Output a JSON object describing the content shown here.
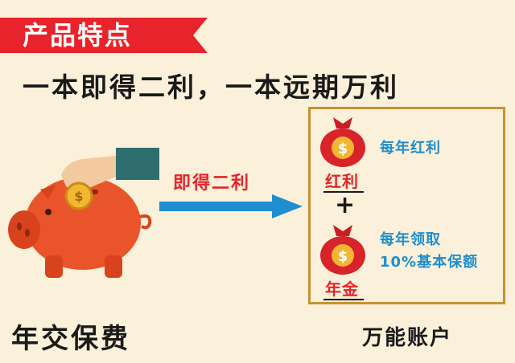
{
  "banner": {
    "title": "产品特点",
    "color": "#e8232b"
  },
  "headline": "一本即得二利，一本远期万利",
  "arrow": {
    "label": "即得二利",
    "color": "#1f8ed0"
  },
  "left_caption": "年交保费",
  "account": {
    "caption": "万能账户",
    "border_color": "#c79232",
    "items": [
      {
        "bag_label": "红利",
        "description_lines": [
          "每年红利"
        ]
      },
      {
        "bag_label": "年金",
        "description_lines": [
          "每年领取",
          "10%基本保额"
        ]
      }
    ],
    "plus": "+"
  },
  "icons": [
    "piggy-bank-icon",
    "hand-with-coin-icon",
    "money-bag-icon",
    "arrow-right-icon"
  ],
  "colors": {
    "accent_red": "#e8232b",
    "accent_blue": "#1f8ed0",
    "background": "#fbf0d9"
  }
}
